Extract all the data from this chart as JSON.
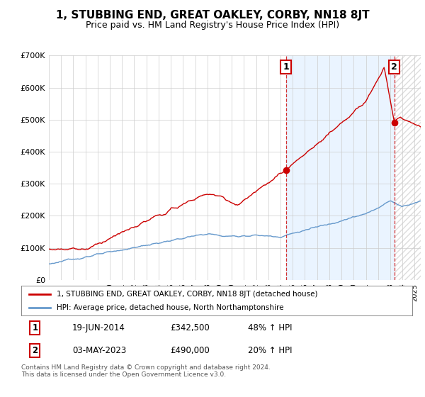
{
  "title": "1, STUBBING END, GREAT OAKLEY, CORBY, NN18 8JT",
  "subtitle": "Price paid vs. HM Land Registry's House Price Index (HPI)",
  "ylim": [
    0,
    700000
  ],
  "yticks": [
    0,
    100000,
    200000,
    300000,
    400000,
    500000,
    600000,
    700000
  ],
  "ytick_labels": [
    "£0",
    "£100K",
    "£200K",
    "£300K",
    "£400K",
    "£500K",
    "£600K",
    "£700K"
  ],
  "red_color": "#cc0000",
  "blue_color": "#6699cc",
  "blue_fill_color": "#ddeeff",
  "hatch_color": "#cccccc",
  "legend_red_label": "1, STUBBING END, GREAT OAKLEY, CORBY, NN18 8JT (detached house)",
  "legend_blue_label": "HPI: Average price, detached house, North Northamptonshire",
  "table_row1": [
    "1",
    "19-JUN-2014",
    "£342,500",
    "48% ↑ HPI"
  ],
  "table_row2": [
    "2",
    "03-MAY-2023",
    "£490,000",
    "20% ↑ HPI"
  ],
  "footnote": "Contains HM Land Registry data © Crown copyright and database right 2024.\nThis data is licensed under the Open Government Licence v3.0.",
  "background_color": "#ffffff",
  "grid_color": "#cccccc",
  "title_fontsize": 11,
  "subtitle_fontsize": 9,
  "sale1_year": 2014.46,
  "sale1_value": 342500,
  "sale2_year": 2023.33,
  "sale2_value": 490000,
  "xmin": 1995.0,
  "xmax": 2025.5
}
